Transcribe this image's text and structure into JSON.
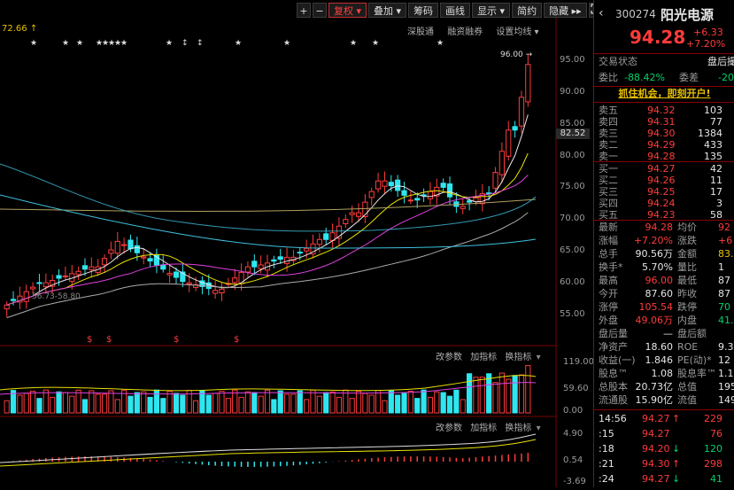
{
  "toolbar": {
    "plus": "+",
    "minus": "−",
    "items": [
      "复权 ▾",
      "叠加 ▾",
      "筹码",
      "画线",
      "显示 ▾",
      "简约",
      "隐藏 ▸▸"
    ],
    "active_index": 0,
    "expand_icon": "expand-icon"
  },
  "main_chart": {
    "high_marker": "72.66",
    "high_arrow": "↑",
    "stars": "★",
    "links": [
      "深股通",
      "融资融券",
      "设置均线 ▾"
    ],
    "peak_label": "96.00",
    "peak_arrow": "→",
    "low_label": "56.73-58.80",
    "dollar_mark": "$",
    "y_ticks": [
      "95.00",
      "90.00",
      "85.00",
      "82.52",
      "80.00",
      "75.00",
      "70.00",
      "65.00",
      "60.00",
      "55.00"
    ],
    "current_price_tag": "82.52"
  },
  "volume_panel": {
    "buttons": [
      "改参数",
      "加指标",
      "换指标"
    ],
    "y_ticks": [
      "119.00",
      "59.60",
      "0.00"
    ]
  },
  "macd_panel": {
    "buttons": [
      "改参数",
      "加指标",
      "换指标"
    ],
    "y_ticks": [
      "4.90",
      "0.54",
      "-3.69"
    ]
  },
  "quote": {
    "code": "300274",
    "name": "阳光电源",
    "price": "94.28",
    "change": "+6.33",
    "change_pct": "+7.20%",
    "status_label": "交易状态",
    "status_value": "盘后撮",
    "weibi_label": "委比",
    "weibi_value": "-88.42%",
    "weicha_label": "委差",
    "weicha_value": "-20",
    "promo": "抓住机会，即刻开户!",
    "asks": [
      {
        "label": "卖五",
        "price": "94.32",
        "vol": "103"
      },
      {
        "label": "卖四",
        "price": "94.31",
        "vol": "77"
      },
      {
        "label": "卖三",
        "price": "94.30",
        "vol": "1384"
      },
      {
        "label": "卖二",
        "price": "94.29",
        "vol": "433"
      },
      {
        "label": "卖一",
        "price": "94.28",
        "vol": "135"
      }
    ],
    "bids": [
      {
        "label": "买一",
        "price": "94.27",
        "vol": "42"
      },
      {
        "label": "买二",
        "price": "94.26",
        "vol": "11"
      },
      {
        "label": "买三",
        "price": "94.25",
        "vol": "17"
      },
      {
        "label": "买四",
        "price": "94.24",
        "vol": "3"
      },
      {
        "label": "买五",
        "price": "94.23",
        "vol": "58"
      }
    ],
    "stats": [
      {
        "l1": "最新",
        "v1": "94.28",
        "c1": "red",
        "l2": "均价",
        "v2": "92",
        "c2": "red"
      },
      {
        "l1": "涨幅",
        "v1": "+7.20%",
        "c1": "red",
        "l2": "涨跌",
        "v2": "+6",
        "c2": "red"
      },
      {
        "l1": "总手",
        "v1": "90.56万",
        "c1": "white",
        "l2": "金额",
        "v2": "83.78",
        "c2": "yellow"
      },
      {
        "l1": "换手*",
        "v1": "5.70%",
        "c1": "white",
        "l2": "量比",
        "v2": "1",
        "c2": "white"
      },
      {
        "l1": "最高",
        "v1": "96.00",
        "c1": "red",
        "l2": "最低",
        "v2": "87",
        "c2": "white"
      },
      {
        "l1": "今开",
        "v1": "87.60",
        "c1": "white",
        "l2": "昨收",
        "v2": "87",
        "c2": "white"
      },
      {
        "l1": "涨停",
        "v1": "105.54",
        "c1": "red",
        "l2": "跌停",
        "v2": "70",
        "c2": "green"
      },
      {
        "l1": "外盘",
        "v1": "49.06万",
        "c1": "red",
        "l2": "内盘",
        "v2": "41.50",
        "c2": "green"
      },
      {
        "l1": "盘后量",
        "v1": "—",
        "c1": "white",
        "l2": "盘后额",
        "v2": "",
        "c2": "white"
      },
      {
        "l1": "净资产",
        "v1": "18.60",
        "c1": "white",
        "l2": "ROE",
        "v2": "9.3",
        "c2": "white"
      },
      {
        "l1": "收益(一)",
        "v1": "1.846",
        "c1": "white",
        "l2": "PE(动)*",
        "v2": "12",
        "c2": "white"
      },
      {
        "l1": "股息™",
        "v1": "1.08",
        "c1": "white",
        "l2": "股息率™",
        "v2": "1.1",
        "c2": "white"
      },
      {
        "l1": "总股本",
        "v1": "20.73亿",
        "c1": "white",
        "l2": "总值",
        "v2": "1955",
        "c2": "white"
      },
      {
        "l1": "流通股",
        "v1": "15.90亿",
        "c1": "white",
        "l2": "流值",
        "v2": "1499",
        "c2": "white"
      }
    ],
    "ticks": [
      {
        "time": "14:56",
        "price": "94.27",
        "dir": "↑",
        "pcolor": "red",
        "vol": "229",
        "vcolor": "red"
      },
      {
        "time": ":15",
        "price": "94.27",
        "dir": "",
        "pcolor": "red",
        "vol": "76",
        "vcolor": "red"
      },
      {
        "time": ":18",
        "price": "94.20",
        "dir": "↓",
        "pcolor": "red",
        "vol": "120",
        "vcolor": "green"
      },
      {
        "time": ":21",
        "price": "94.30",
        "dir": "↑",
        "pcolor": "red",
        "vol": "298",
        "vcolor": "red"
      },
      {
        "time": ":24",
        "price": "94.27",
        "dir": "↓",
        "pcolor": "red",
        "vol": "41",
        "vcolor": "green"
      }
    ]
  },
  "colors": {
    "up": "#ff3b3b",
    "down": "#2ee6f0",
    "ma5": "#e6e6e6",
    "ma10": "#e8e000",
    "ma20": "#e040e0",
    "ma30": "#00d060",
    "ma60": "#aaaaaa",
    "ma120": "#40c0e0",
    "ma250": "#b0a060"
  }
}
